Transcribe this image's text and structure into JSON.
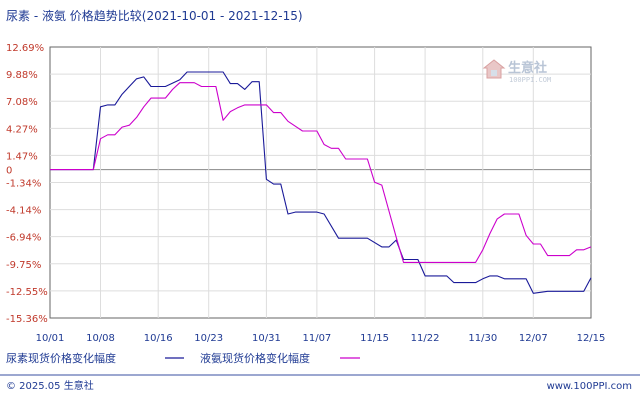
{
  "chart_data": {
    "type": "line",
    "title": "尿素 - 液氨 价格趋势比较(2021-10-01 - 2021-12-15)",
    "x_ticks": [
      "10/01",
      "10/08",
      "10/16",
      "10/23",
      "10/31",
      "11/07",
      "11/15",
      "11/22",
      "11/30",
      "12/07",
      "12/15"
    ],
    "y_ticks": [
      "12.69%",
      "9.88%",
      "7.08%",
      "4.27%",
      "1.47%",
      "0",
      "-1.34%",
      "-4.14%",
      "-6.94%",
      "-9.75%",
      "-12.55%",
      "-15.36%"
    ],
    "ylim": [
      -15.36,
      12.69
    ],
    "grid": true,
    "legend_position": "bottom-left",
    "series": [
      {
        "name": "尿素现货价格变化幅度",
        "color": "#1a1a99",
        "points": [
          [
            "10/01",
            0
          ],
          [
            "10/07",
            0
          ],
          [
            "10/08",
            6.5
          ],
          [
            "10/09",
            6.7
          ],
          [
            "10/10",
            6.7
          ],
          [
            "10/11",
            7.8
          ],
          [
            "10/12",
            8.6
          ],
          [
            "10/13",
            9.4
          ],
          [
            "10/14",
            9.6
          ],
          [
            "10/15",
            8.6
          ],
          [
            "10/17",
            8.6
          ],
          [
            "10/19",
            9.3
          ],
          [
            "10/20",
            10.1
          ],
          [
            "10/25",
            10.1
          ],
          [
            "10/26",
            8.9
          ],
          [
            "10/27",
            8.9
          ],
          [
            "10/28",
            8.3
          ],
          [
            "10/29",
            9.1
          ],
          [
            "10/30",
            9.1
          ],
          [
            "10/31",
            -1.0
          ],
          [
            "11/01",
            -1.5
          ],
          [
            "11/02",
            -1.5
          ],
          [
            "11/03",
            -4.6
          ],
          [
            "11/04",
            -4.4
          ],
          [
            "11/07",
            -4.4
          ],
          [
            "11/08",
            -4.6
          ],
          [
            "11/10",
            -7.1
          ],
          [
            "11/14",
            -7.1
          ],
          [
            "11/16",
            -8.0
          ],
          [
            "11/17",
            -8.0
          ],
          [
            "11/18",
            -7.3
          ],
          [
            "11/19",
            -9.3
          ],
          [
            "11/21",
            -9.3
          ],
          [
            "11/22",
            -11.0
          ],
          [
            "11/25",
            -11.0
          ],
          [
            "11/26",
            -11.7
          ],
          [
            "11/29",
            -11.7
          ],
          [
            "11/30",
            -11.3
          ],
          [
            "12/01",
            -11.0
          ],
          [
            "12/02",
            -11.0
          ],
          [
            "12/03",
            -11.3
          ],
          [
            "12/06",
            -11.3
          ],
          [
            "12/07",
            -12.8
          ],
          [
            "12/09",
            -12.6
          ],
          [
            "12/14",
            -12.6
          ],
          [
            "12/15",
            -11.2
          ]
        ]
      },
      {
        "name": "液氨现货价格变化幅度",
        "color": "#cc00cc",
        "points": [
          [
            "10/01",
            0
          ],
          [
            "10/07",
            0
          ],
          [
            "10/08",
            3.2
          ],
          [
            "10/09",
            3.6
          ],
          [
            "10/10",
            3.6
          ],
          [
            "10/11",
            4.4
          ],
          [
            "10/12",
            4.6
          ],
          [
            "10/13",
            5.4
          ],
          [
            "10/14",
            6.5
          ],
          [
            "10/15",
            7.4
          ],
          [
            "10/17",
            7.4
          ],
          [
            "10/18",
            8.3
          ],
          [
            "10/19",
            9.0
          ],
          [
            "10/21",
            9.0
          ],
          [
            "10/22",
            8.6
          ],
          [
            "10/24",
            8.6
          ],
          [
            "10/25",
            5.1
          ],
          [
            "10/26",
            6.0
          ],
          [
            "10/27",
            6.4
          ],
          [
            "10/28",
            6.7
          ],
          [
            "10/31",
            6.7
          ],
          [
            "11/01",
            5.9
          ],
          [
            "11/02",
            5.9
          ],
          [
            "11/03",
            5.0
          ],
          [
            "11/05",
            4.0
          ],
          [
            "11/07",
            4.0
          ],
          [
            "11/08",
            2.6
          ],
          [
            "11/09",
            2.2
          ],
          [
            "11/10",
            2.2
          ],
          [
            "11/11",
            1.1
          ],
          [
            "11/14",
            1.1
          ],
          [
            "11/15",
            -1.3
          ],
          [
            "11/16",
            -1.6
          ],
          [
            "11/17",
            -4.3
          ],
          [
            "11/18",
            -7.0
          ],
          [
            "11/19",
            -9.6
          ],
          [
            "11/22",
            -9.6
          ],
          [
            "11/26",
            -9.6
          ],
          [
            "11/28",
            -9.6
          ],
          [
            "11/29",
            -9.6
          ],
          [
            "11/30",
            -8.3
          ],
          [
            "12/01",
            -6.6
          ],
          [
            "12/02",
            -5.1
          ],
          [
            "12/03",
            -4.6
          ],
          [
            "12/04",
            -4.6
          ],
          [
            "12/05",
            -4.6
          ],
          [
            "12/06",
            -6.8
          ],
          [
            "12/07",
            -7.7
          ],
          [
            "12/08",
            -7.7
          ],
          [
            "12/09",
            -8.9
          ],
          [
            "12/12",
            -8.9
          ],
          [
            "12/13",
            -8.3
          ],
          [
            "12/14",
            -8.3
          ],
          [
            "12/15",
            -8.0
          ]
        ]
      }
    ]
  },
  "footer": {
    "copyright": "© 2025.05 生意社",
    "site": "www.100PPI.com"
  },
  "watermark": {
    "name": "生意社",
    "url": "100PPI.COM"
  }
}
